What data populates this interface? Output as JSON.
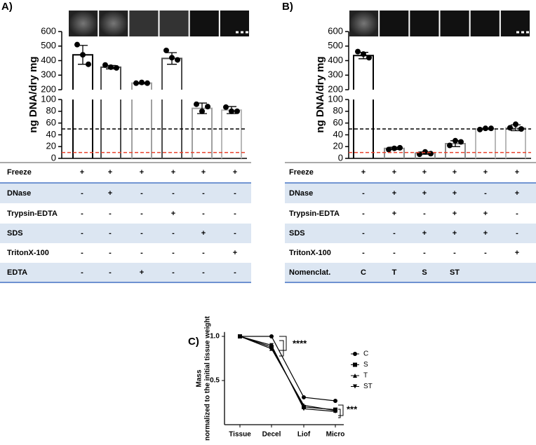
{
  "panel_labels": [
    "A)",
    "B)",
    "C)"
  ],
  "chart_data": [
    {
      "type": "bar",
      "ylabel": "ng DNA/dry mg",
      "axis_segments": [
        {
          "ylim": [
            0,
            100
          ],
          "yticks": [
            0,
            20,
            40,
            60,
            80,
            100
          ]
        },
        {
          "ylim": [
            200,
            600
          ],
          "yticks": [
            200,
            300,
            400,
            500,
            600
          ]
        }
      ],
      "values": [
        440,
        355,
        245,
        415,
        85,
        82
      ],
      "errors": [
        65,
        12,
        5,
        40,
        9,
        6
      ],
      "points": [
        [
          510,
          440,
          375
        ],
        [
          370,
          355,
          350
        ],
        [
          245,
          250,
          245
        ],
        [
          470,
          420,
          405
        ],
        [
          92,
          80,
          88
        ],
        [
          87,
          80,
          80
        ]
      ],
      "colors": [
        "#000000",
        "#4d4d4d",
        "#a0a0a0",
        "#4d4d4d",
        "#a0a0a0",
        "#b8b8b8"
      ],
      "reference_lines": [
        {
          "value": 50,
          "color": "#000000"
        },
        {
          "value": 10,
          "color": "#e8412c"
        }
      ]
    },
    {
      "type": "bar",
      "ylabel": "ng DNA/dry mg",
      "axis_segments": [
        {
          "ylim": [
            0,
            100
          ],
          "yticks": [
            0,
            20,
            40,
            60,
            80,
            100
          ]
        },
        {
          "ylim": [
            200,
            600
          ],
          "yticks": [
            200,
            300,
            400,
            500,
            600
          ]
        }
      ],
      "values": [
        435,
        17,
        9,
        25,
        50,
        52
      ],
      "errors": [
        22,
        2,
        2,
        5,
        1,
        5
      ],
      "points": [
        [
          462,
          445,
          420
        ],
        [
          15,
          17,
          18
        ],
        [
          7,
          11,
          8
        ],
        [
          22,
          30,
          28
        ],
        [
          49,
          51,
          51
        ],
        [
          52,
          58,
          50
        ]
      ],
      "colors": [
        "#000000",
        "#8c8c8c",
        "#8c8c8c",
        "#8c8c8c",
        "#b8b8b8",
        "#b8b8b8"
      ],
      "reference_lines": [
        {
          "value": 50,
          "color": "#000000"
        },
        {
          "value": 10,
          "color": "#e8412c"
        }
      ]
    },
    {
      "type": "line",
      "ylabel": [
        "Mass",
        "normalized to the initial tissue weight"
      ],
      "categories": [
        "Tissue",
        "Decel",
        "Liof",
        "Micro"
      ],
      "ylim": [
        0,
        1.05
      ],
      "yticks": [
        0.5,
        {
          "value": 1,
          "label": "1.0"
        }
      ],
      "series": [
        {
          "name": "C",
          "marker": "circle",
          "color": "#000000",
          "values": [
            1,
            1,
            0.31,
            0.27
          ]
        },
        {
          "name": "S",
          "marker": "square",
          "color": "#000000",
          "values": [
            1,
            0.88,
            0.2,
            0.17
          ]
        },
        {
          "name": "T",
          "marker": "triangle-up",
          "color": "#000000",
          "values": [
            1,
            0.86,
            0.22,
            0.16
          ]
        },
        {
          "name": "ST",
          "marker": "triangle-down",
          "color": "#000000",
          "values": [
            1,
            0.9,
            0.18,
            0.15
          ]
        }
      ],
      "annotations": [
        "****",
        "***"
      ]
    }
  ],
  "tables": [
    {
      "rows": [
        {
          "label": "Freeze",
          "cells": [
            "+",
            "+",
            "+",
            "+",
            "+",
            "+"
          ]
        },
        {
          "label": "DNase",
          "cells": [
            "-",
            "+",
            "-",
            "-",
            "-",
            "-"
          ]
        },
        {
          "label": "Trypsin-EDTA",
          "cells": [
            "-",
            "-",
            "-",
            "+",
            "-",
            "-"
          ]
        },
        {
          "label": "SDS",
          "cells": [
            "-",
            "-",
            "-",
            "-",
            "+",
            "-"
          ]
        },
        {
          "label": "TritonX-100",
          "cells": [
            "-",
            "-",
            "-",
            "-",
            "-",
            "+"
          ]
        },
        {
          "label": "EDTA",
          "cells": [
            "-",
            "-",
            "+",
            "-",
            "-",
            "-"
          ]
        }
      ]
    },
    {
      "rows": [
        {
          "label": "Freeze",
          "cells": [
            "+",
            "+",
            "+",
            "+",
            "+",
            "+"
          ]
        },
        {
          "label": "DNase",
          "cells": [
            "-",
            "+",
            "+",
            "+",
            "-",
            "+"
          ]
        },
        {
          "label": "Trypsin-EDTA",
          "cells": [
            "-",
            "+",
            "-",
            "+",
            "+",
            "-"
          ]
        },
        {
          "label": "SDS",
          "cells": [
            "-",
            "-",
            "+",
            "+",
            "+",
            "-"
          ]
        },
        {
          "label": "TritonX-100",
          "cells": [
            "-",
            "-",
            "-",
            "-",
            "-",
            "+"
          ]
        },
        {
          "label": "Nomenclat.",
          "cells": [
            "C",
            "T",
            "S",
            "ST",
            null,
            null
          ]
        }
      ]
    }
  ]
}
